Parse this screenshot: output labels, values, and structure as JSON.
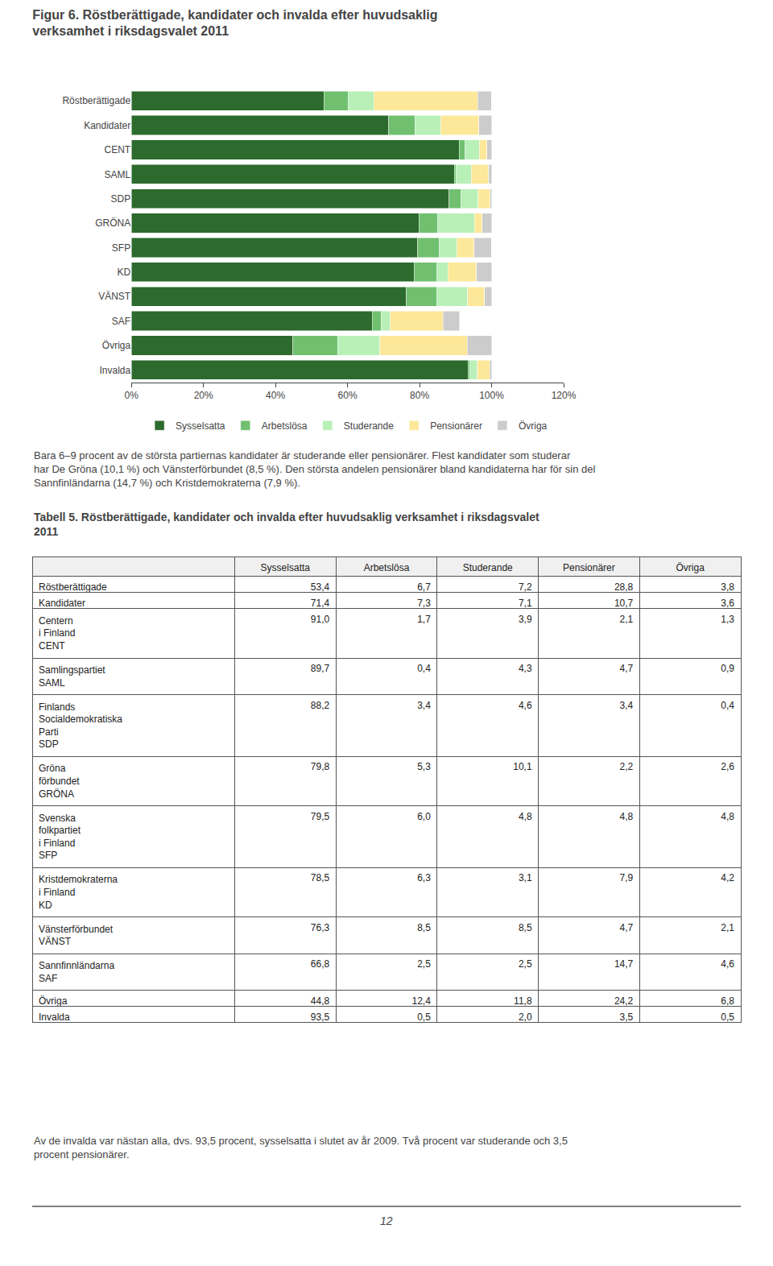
{
  "chart_data": [
    {
      "type": "bar",
      "orientation": "horizontal",
      "stacked": true,
      "title": "Figur 6. Röstberättigade, kandidater och invalda efter huvudsaklig\nverksamhet i riksdagsvalet 2011",
      "categories": [
        "Röstberättigade",
        "Kandidater",
        "CENT",
        "SAML",
        "SDP",
        "GRÖNA",
        "SFP",
        "KD",
        "VÄNST",
        "SAF",
        "Övriga",
        "Invalda"
      ],
      "series": [
        {
          "name": "Sysselsatta",
          "color": "#2d6a2d",
          "values": [
            53.4,
            71.4,
            91.0,
            89.7,
            88.2,
            79.8,
            79.5,
            78.5,
            76.3,
            66.8,
            44.8,
            93.5
          ]
        },
        {
          "name": "Arbetslösa",
          "color": "#70c070",
          "values": [
            6.7,
            7.3,
            1.7,
            0.4,
            3.4,
            5.3,
            6.0,
            6.3,
            8.5,
            2.5,
            12.4,
            0.5
          ]
        },
        {
          "name": "Studerande",
          "color": "#b8f0b8",
          "values": [
            7.2,
            7.1,
            3.9,
            4.3,
            4.6,
            10.1,
            4.8,
            3.1,
            8.5,
            2.5,
            11.8,
            2.0
          ]
        },
        {
          "name": "Pensionärer",
          "color": "#fde89a",
          "values": [
            28.8,
            10.7,
            2.1,
            4.7,
            3.4,
            2.2,
            4.8,
            7.9,
            4.7,
            14.7,
            24.2,
            3.5
          ]
        },
        {
          "name": "Övriga",
          "color": "#cccccc",
          "values": [
            3.8,
            3.6,
            1.3,
            0.9,
            0.4,
            2.6,
            4.8,
            4.2,
            2.1,
            4.6,
            6.8,
            0.5
          ]
        }
      ],
      "xlim": [
        0,
        120
      ],
      "xticks": [
        {
          "value": 0,
          "label": "0%"
        },
        {
          "value": 20,
          "label": "20%"
        },
        {
          "value": 40,
          "label": "40%"
        },
        {
          "value": 60,
          "label": "60%"
        },
        {
          "value": 80,
          "label": "80%"
        },
        {
          "value": 100,
          "label": "100%"
        },
        {
          "value": 120,
          "label": "120%"
        }
      ],
      "grid": false,
      "legend": "bottom",
      "annotations": [
        "Bara 6–9 procent av de största partiernas kandidater är studerande eller pensionärer. Flest kandidater som studerar har De Gröna (10,1 %) och Vänsterförbundet (8,5 %). Den största andelen pensionärer bland kandidaterna har för sin del Sannfinländarna (14,7 %) och Kristdemokraterna (7,9 %).",
        "Av de invalda var nästan alla, dvs. 93,5 procent, sysselsatta i slutet av år 2009. Två procent var studerande och 3,5 procent pensionärer.",
        "12"
      ]
    },
    {
      "type": "table",
      "title": "Tabell 5. Röstberättigade, kandidater och invalda efter huvudsaklig verksamhet i riksdagsvalet\n2011",
      "columns": [
        "Sysselsatta",
        "Arbetslösa",
        "Studerande",
        "Pensionärer",
        "Övriga"
      ],
      "rows": [
        "Röstberättigade",
        "Kandidater",
        "Centern\ni Finland\nCENT",
        "Samlingspartiet\nSAML",
        "Finlands\nSocialdemokratiska\nParti\nSDP",
        "Gröna\nförbundet\nGRÖNA",
        "Svenska\nfolkpartiet\ni Finland\nSFP",
        "Kristdemokraterna\ni Finland\nKD",
        "Vänsterförbundet\nVÄNST",
        "Sannfinnländarna\nSAF",
        "Övriga",
        "Invalda"
      ],
      "values": [
        [
          53.4,
          6.7,
          7.2,
          28.8,
          3.8
        ],
        [
          71.4,
          7.3,
          7.1,
          10.7,
          3.6
        ],
        [
          91.0,
          1.7,
          3.9,
          2.1,
          1.3
        ],
        [
          89.7,
          0.4,
          4.3,
          4.7,
          0.9
        ],
        [
          88.2,
          3.4,
          4.6,
          3.4,
          0.4
        ],
        [
          79.8,
          5.3,
          10.1,
          2.2,
          2.6
        ],
        [
          79.5,
          6.0,
          4.8,
          4.8,
          4.8
        ],
        [
          78.5,
          6.3,
          3.1,
          7.9,
          4.2
        ],
        [
          76.3,
          8.5,
          8.5,
          4.7,
          2.1
        ],
        [
          66.8,
          2.5,
          2.5,
          14.7,
          4.6
        ],
        [
          44.8,
          12.4,
          11.8,
          24.2,
          6.8
        ],
        [
          93.5,
          0.5,
          2.0,
          3.5,
          0.5
        ]
      ],
      "value_labels": [
        [
          "53,4",
          "6,7",
          "7,2",
          "28,8",
          "3,8"
        ],
        [
          "71,4",
          "7,3",
          "7,1",
          "10,7",
          "3,6"
        ],
        [
          "91,0",
          "1,7",
          "3,9",
          "2,1",
          "1,3"
        ],
        [
          "89,7",
          "0,4",
          "4,3",
          "4,7",
          "0,9"
        ],
        [
          "88,2",
          "3,4",
          "4,6",
          "3,4",
          "0,4"
        ],
        [
          "79,8",
          "5,3",
          "10,1",
          "2,2",
          "2,6"
        ],
        [
          "79,5",
          "6,0",
          "4,8",
          "4,8",
          "4,8"
        ],
        [
          "78,5",
          "6,3",
          "3,1",
          "7,9",
          "4,2"
        ],
        [
          "76,3",
          "8,5",
          "8,5",
          "4,7",
          "2,1"
        ],
        [
          "66,8",
          "2,5",
          "2,5",
          "14,7",
          "4,6"
        ],
        [
          "44,8",
          "12,4",
          "11,8",
          "24,2",
          "6,8"
        ],
        [
          "93,5",
          "0,5",
          "2,0",
          "3,5",
          "0,5"
        ]
      ]
    }
  ]
}
